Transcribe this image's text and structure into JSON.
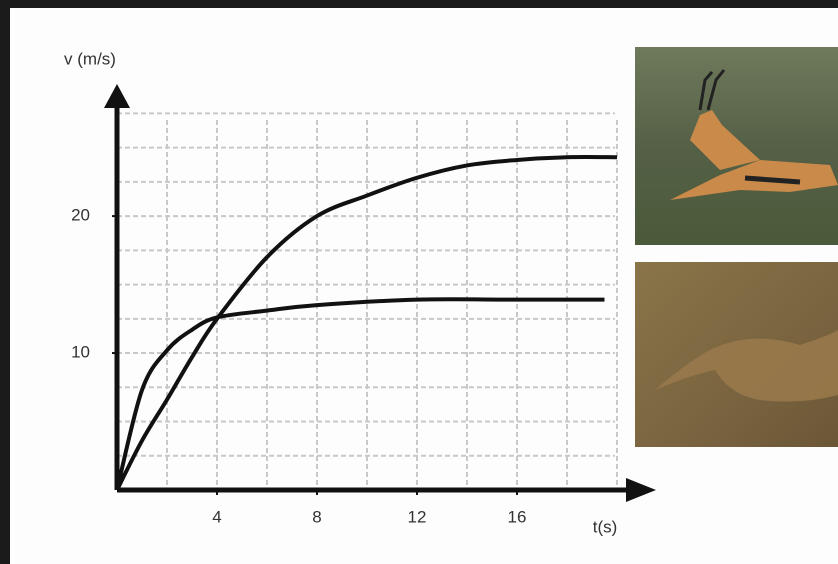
{
  "chart_data": {
    "type": "line",
    "ylabel": "v (m/s)",
    "xlabel": "t(s)",
    "series": [
      {
        "color": "#111111",
        "x": [
          0,
          1,
          2,
          3,
          4,
          6,
          8,
          10,
          12,
          14,
          16,
          18,
          20
        ],
        "values": [
          0,
          3.6,
          6.6,
          9.7,
          12.5,
          17,
          20,
          21.5,
          22.8,
          23.7,
          24.1,
          24.3,
          24.3
        ]
      },
      {
        "color": "#111111",
        "x": [
          0,
          1,
          2,
          3,
          4,
          6,
          8,
          12,
          16,
          19.5
        ],
        "values": [
          0,
          7.3,
          10.2,
          11.7,
          12.6,
          13.1,
          13.5,
          13.9,
          13.9,
          13.9
        ]
      }
    ],
    "xlim": [
      0,
      21
    ],
    "ylim": [
      0,
      29.5
    ],
    "xticks": [
      4,
      8,
      12,
      16
    ],
    "yticks": [
      10,
      20
    ],
    "xgrid": [
      2,
      4,
      6,
      8,
      10,
      12,
      14,
      16,
      18,
      20
    ],
    "ygrid": [
      2.5,
      5,
      7.5,
      10,
      12.5,
      15,
      17.5,
      20,
      22.5,
      25,
      27.5
    ],
    "grid": true
  }
}
